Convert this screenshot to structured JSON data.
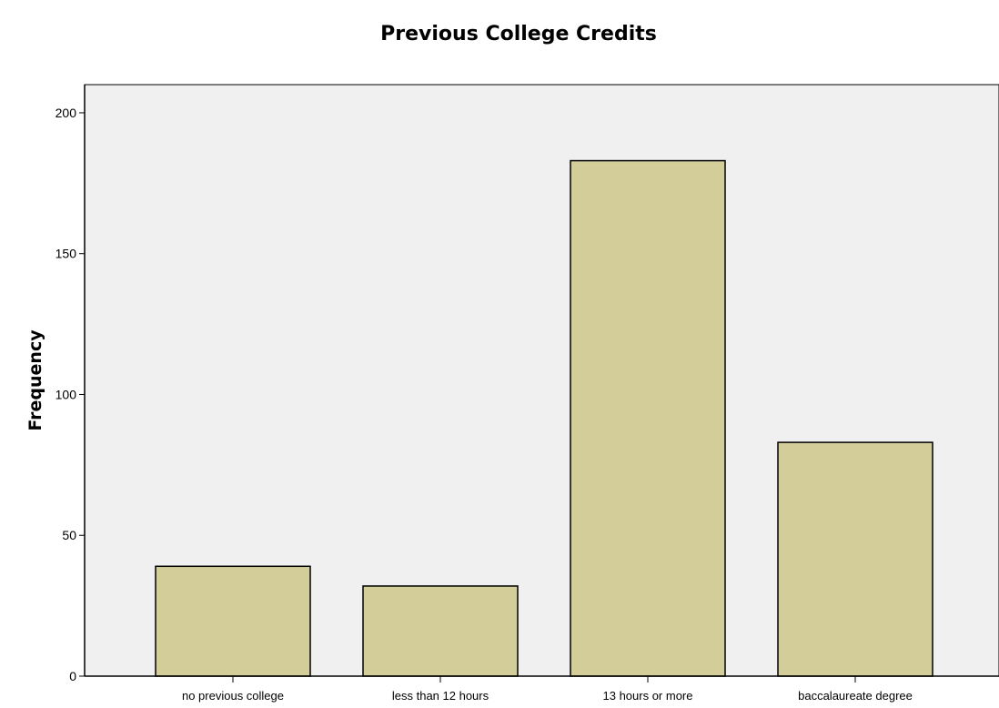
{
  "chart_data": {
    "type": "bar",
    "title": "Previous College Credits",
    "xlabel": "",
    "ylabel": "Frequency",
    "categories": [
      "no previous college",
      "less than 12 hours",
      "13 hours or more",
      "baccalaureate degree"
    ],
    "values": [
      39,
      32,
      183,
      83
    ],
    "ylim": [
      0,
      210
    ],
    "yticks": [
      0,
      50,
      100,
      150,
      200
    ],
    "grid": false,
    "legend": "none",
    "colors": {
      "bar_fill": "#d3ce99",
      "bar_stroke": "#000000",
      "plot_background": "#f0f0f0",
      "axis": "#000000"
    }
  }
}
